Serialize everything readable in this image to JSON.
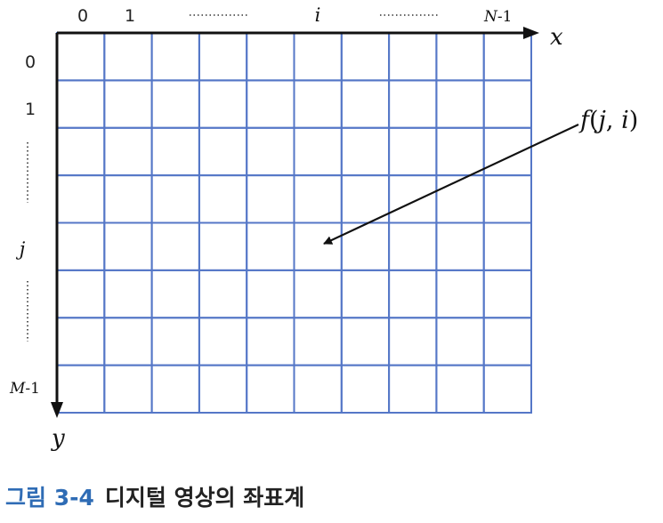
{
  "diagram": {
    "grid": {
      "columns": 10,
      "rows": 8,
      "line_color": "#5577c7"
    },
    "axis_color": "#111111",
    "x_axis": {
      "name": "x",
      "tick_0": "0",
      "tick_1": "1",
      "tick_mid": "i",
      "tick_last_var": "N",
      "tick_last_suffix": "-1"
    },
    "y_axis": {
      "name": "y",
      "tick_0": "0",
      "tick_1": "1",
      "tick_mid": "j",
      "tick_last_var": "M",
      "tick_last_suffix": "-1"
    },
    "pixel_label": {
      "func": "f",
      "open": "(",
      "arg1": "j",
      "comma": ", ",
      "arg2": "i",
      "close": ")"
    }
  },
  "caption": {
    "number": "그림 3-4",
    "title": "디지털 영상의 좌표계",
    "number_color": "#2f6cb5"
  }
}
